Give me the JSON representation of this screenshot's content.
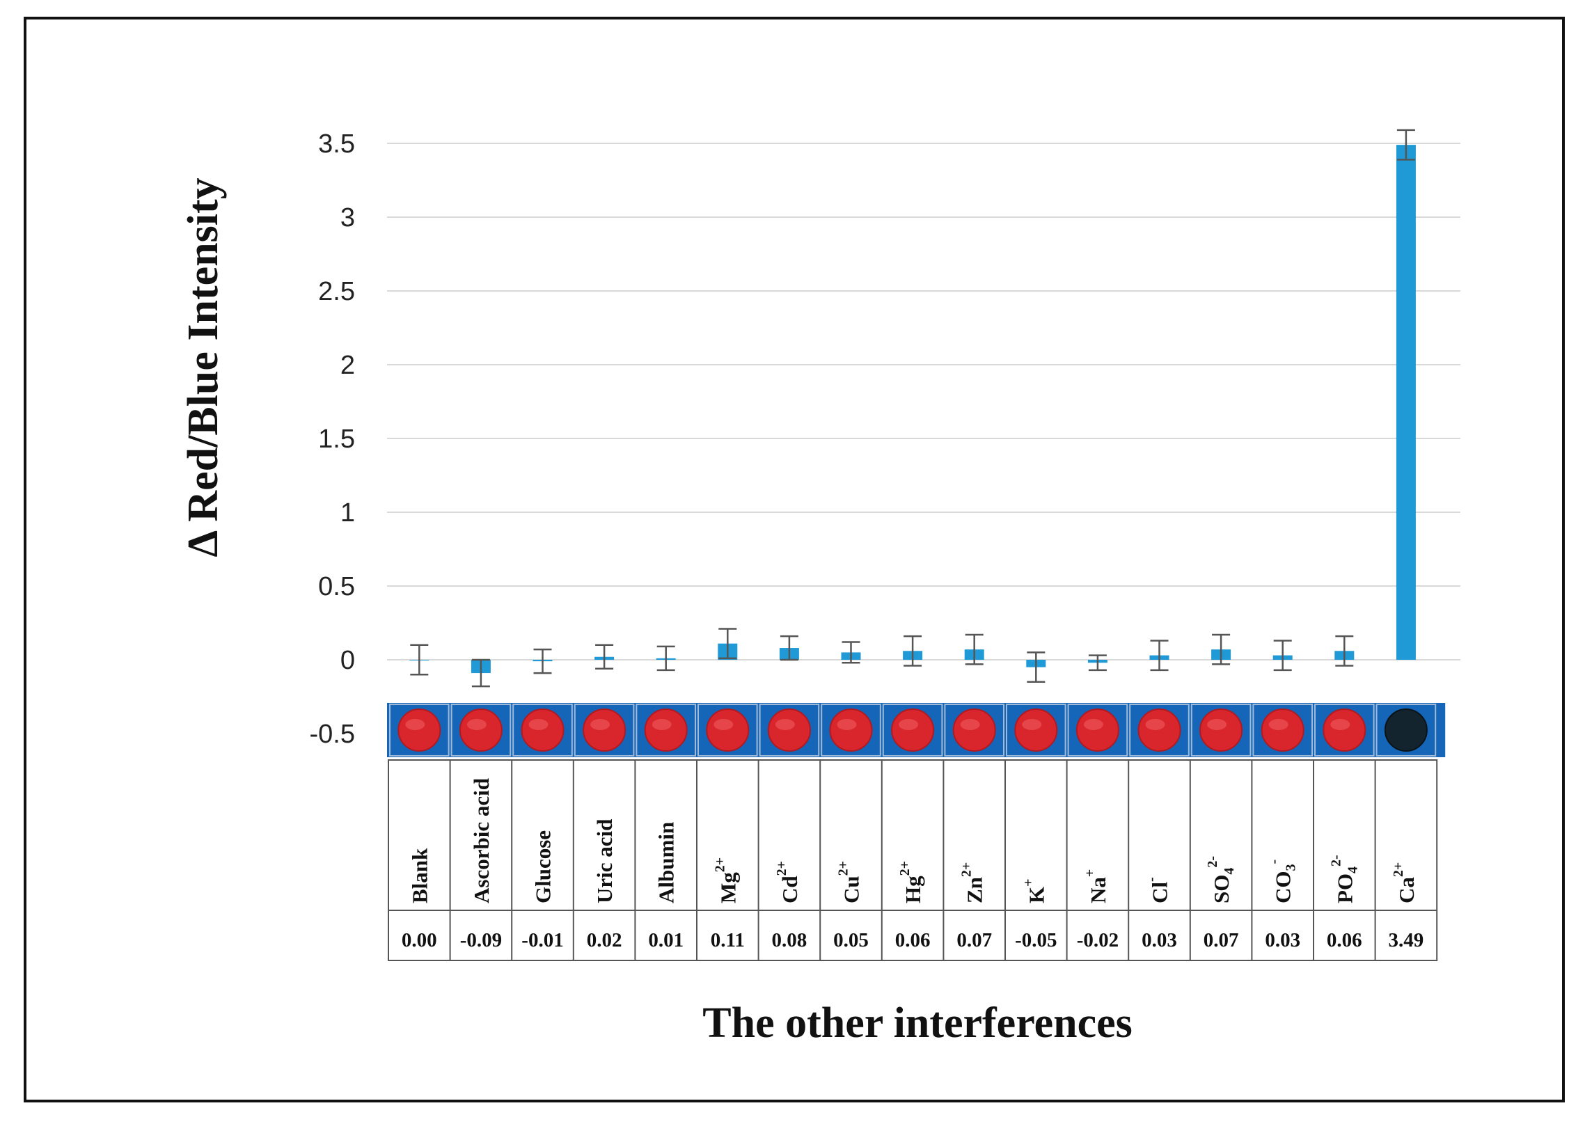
{
  "chart_data": {
    "type": "bar",
    "title": "",
    "ylabel": "Δ Red/Blue Intensity",
    "xlabel": "The other interferences",
    "ylim": [
      -0.5,
      3.5
    ],
    "yticks": [
      "-0.5",
      "0",
      "0.5",
      "1",
      "1.5",
      "2",
      "2.5",
      "3",
      "3.5"
    ],
    "grid": true,
    "bar_color": "#1f9ad6",
    "well_panel_color": "#1565b8",
    "well_color": "#d8262c",
    "categories": [
      {
        "base": "Blank",
        "sup": "",
        "sub": "",
        "value_label": "0.00"
      },
      {
        "base": "Ascorbic acid",
        "sup": "",
        "sub": "",
        "value_label": "-0.09"
      },
      {
        "base": "Glucose",
        "sup": "",
        "sub": "",
        "value_label": "-0.01"
      },
      {
        "base": "Uric acid",
        "sup": "",
        "sub": "",
        "value_label": "0.02"
      },
      {
        "base": "Albumin",
        "sup": "",
        "sub": "",
        "value_label": "0.01"
      },
      {
        "base": "Mg",
        "sup": "2+",
        "sub": "",
        "value_label": "0.11"
      },
      {
        "base": "Cd",
        "sup": "2+",
        "sub": "",
        "value_label": "0.08"
      },
      {
        "base": "Cu",
        "sup": "2+",
        "sub": "",
        "value_label": "0.05"
      },
      {
        "base": "Hg",
        "sup": "2+",
        "sub": "",
        "value_label": "0.06"
      },
      {
        "base": "Zn",
        "sup": "2+",
        "sub": "",
        "value_label": "0.07"
      },
      {
        "base": "K",
        "sup": "+",
        "sub": "",
        "value_label": "-0.05"
      },
      {
        "base": "Na",
        "sup": "+",
        "sub": "",
        "value_label": "-0.02"
      },
      {
        "base": "Cl",
        "sup": "-",
        "sub": "",
        "value_label": "0.03"
      },
      {
        "base": "SO",
        "sup": "2-",
        "sub": "4",
        "value_label": "0.07"
      },
      {
        "base": "CO",
        "sup": "-",
        "sub": "3",
        "value_label": "0.03"
      },
      {
        "base": "PO",
        "sup": "2-",
        "sub": "4",
        "value_label": "0.06"
      },
      {
        "base": "Ca",
        "sup": "2+",
        "sub": "",
        "value_label": "3.49"
      }
    ],
    "values": [
      0.0,
      -0.09,
      -0.01,
      0.02,
      0.01,
      0.11,
      0.08,
      0.05,
      0.06,
      0.07,
      -0.05,
      -0.02,
      0.03,
      0.07,
      0.03,
      0.06,
      3.49
    ],
    "errors": [
      0.1,
      0.09,
      0.08,
      0.08,
      0.08,
      0.1,
      0.08,
      0.07,
      0.1,
      0.1,
      0.1,
      0.05,
      0.1,
      0.1,
      0.1,
      0.1,
      0.1
    ],
    "well_state": [
      "red",
      "red",
      "red",
      "red",
      "red",
      "red",
      "red",
      "red",
      "red",
      "red",
      "red",
      "red",
      "red",
      "red",
      "red",
      "red",
      "dark"
    ]
  }
}
